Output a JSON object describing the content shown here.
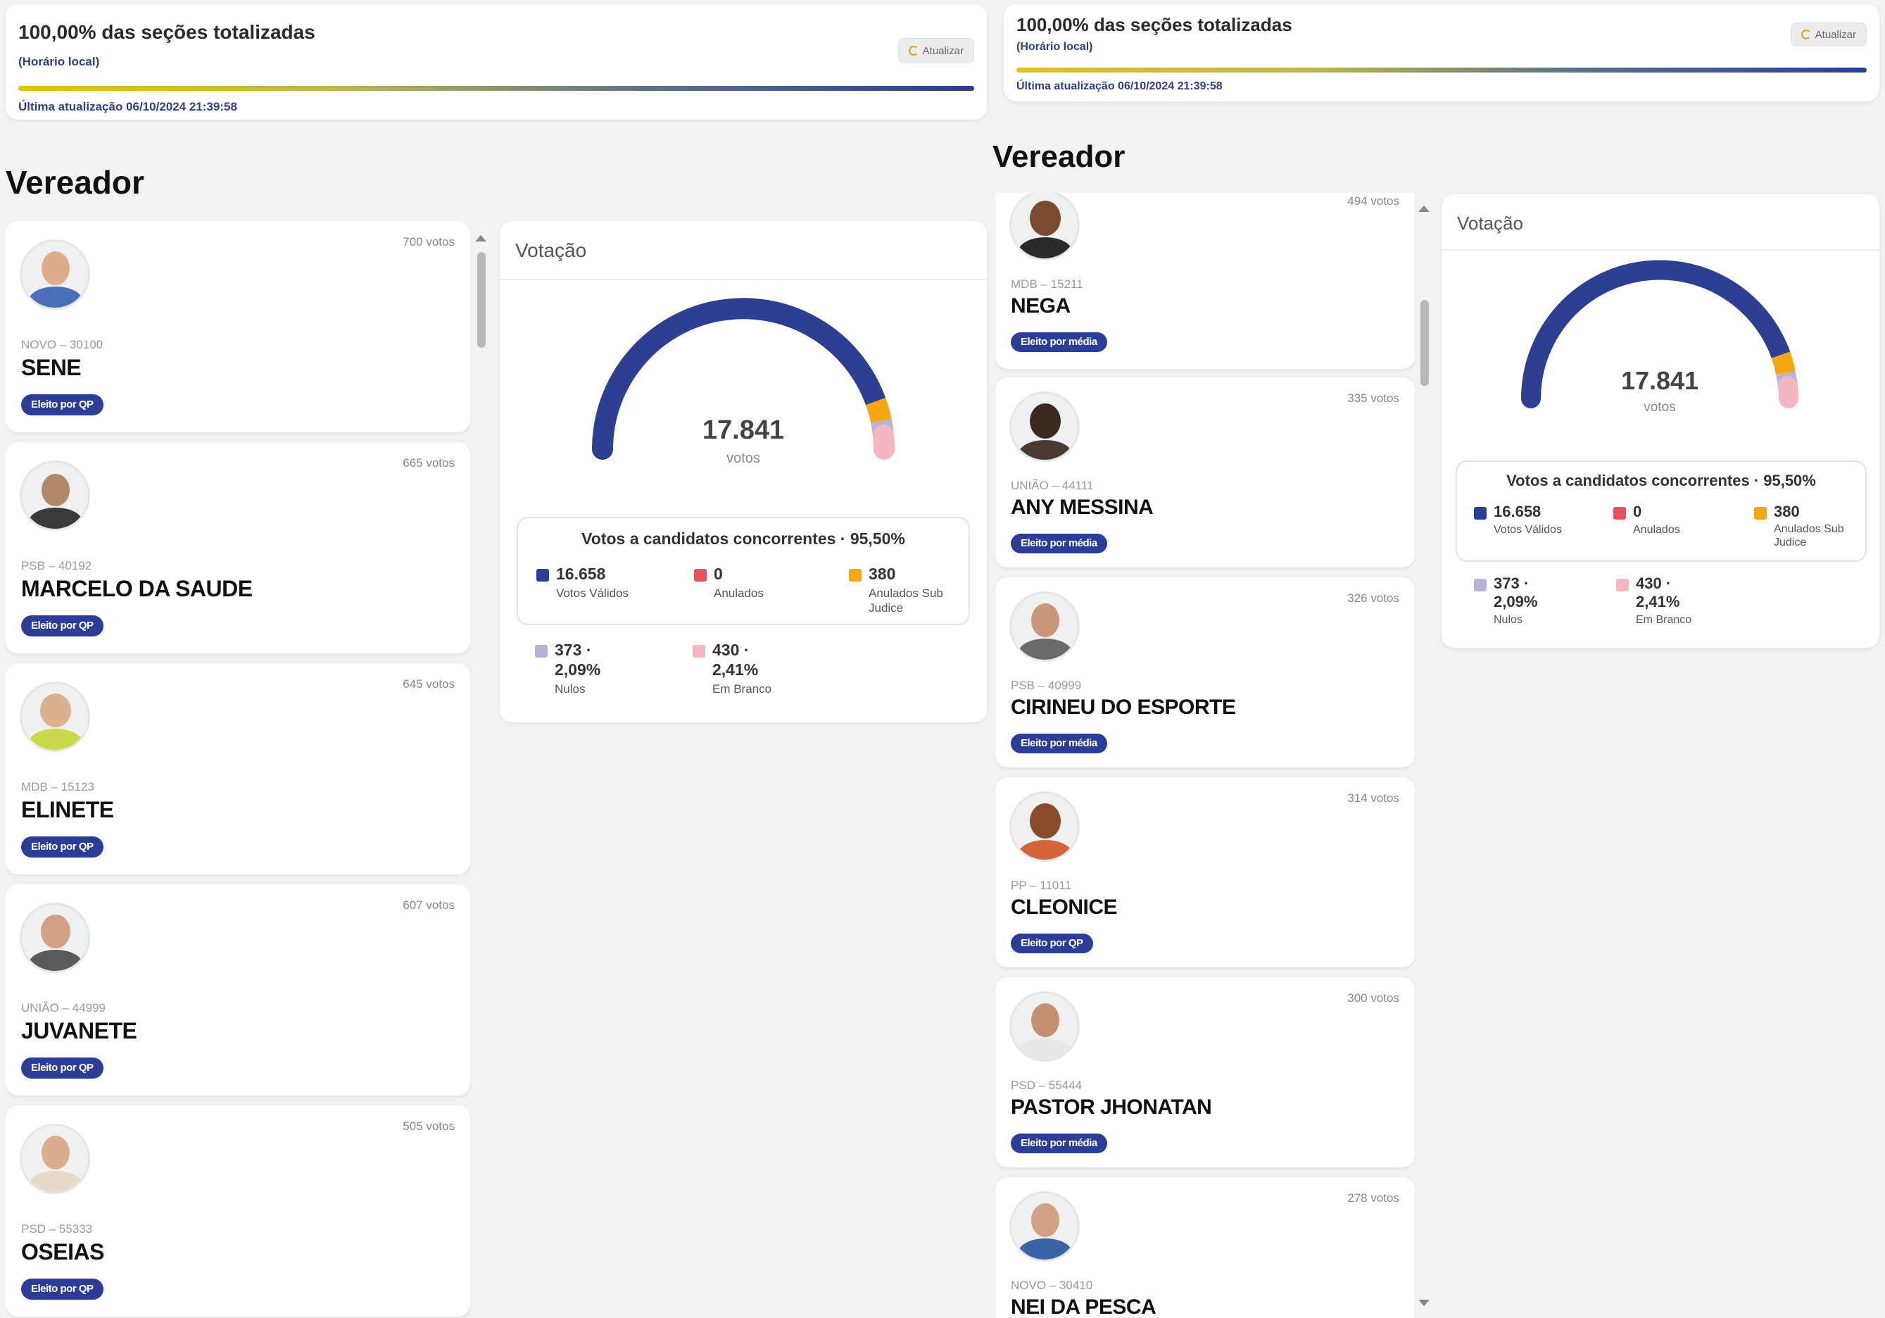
{
  "panels": [
    {
      "status": {
        "title": "100,00% das seções totalizadas",
        "timezone": "(Horário local)",
        "last_update": "Última atualização 06/10/2024 21:39:58",
        "refresh_label": "Atualizar"
      },
      "section_title": "Vereador",
      "candidates": [
        {
          "votes": "700 votos",
          "party": "NOVO – 30100",
          "name": "SENE",
          "badge": "Eleito por QP"
        },
        {
          "votes": "665 votos",
          "party": "PSB – 40192",
          "name": "MARCELO DA SAUDE",
          "badge": "Eleito por QP"
        },
        {
          "votes": "645 votos",
          "party": "MDB – 15123",
          "name": "ELINETE",
          "badge": "Eleito por QP"
        },
        {
          "votes": "607 votos",
          "party": "UNIÃO – 44999",
          "name": "JUVANETE",
          "badge": "Eleito por QP"
        },
        {
          "votes": "505 votos",
          "party": "PSD – 55333",
          "name": "OSEIAS",
          "badge": "Eleito por QP"
        }
      ],
      "voting": {
        "title": "Votação",
        "total": "17.841",
        "total_label": "votos",
        "concorrentes_title": "Votos a candidatos concorrentes · 95,50%",
        "validos": {
          "value": "16.658",
          "label": "Votos Válidos",
          "color": "#2b3d96"
        },
        "anulados": {
          "value": "0",
          "label": "Anulados",
          "color": "#e8505b"
        },
        "sub_judice": {
          "value": "380",
          "label_1": "Anulados Sub",
          "label_2": "Judice",
          "color": "#f3a712"
        },
        "nulos": {
          "value": "373 ·",
          "pct": "2,09%",
          "label": "Nulos",
          "color": "#b7b3d9"
        },
        "branco": {
          "value": "430 ·",
          "pct": "2,41%",
          "label": "Em Branco",
          "color": "#f4b6c0"
        }
      }
    },
    {
      "status": {
        "title": "100,00% das seções totalizadas",
        "timezone": "(Horário local)",
        "last_update": "Última atualização 06/10/2024 21:39:58",
        "refresh_label": "Atualizar"
      },
      "section_title": "Vereador",
      "candidates": [
        {
          "votes": "494 votos",
          "party": "MDB – 15211",
          "name": "NEGA",
          "badge": "Eleito por média"
        },
        {
          "votes": "335 votos",
          "party": "UNIÃO – 44111",
          "name": "ANY MESSINA",
          "badge": "Eleito por média"
        },
        {
          "votes": "326 votos",
          "party": "PSB – 40999",
          "name": "CIRINEU DO ESPORTE",
          "badge": "Eleito por média"
        },
        {
          "votes": "314 votos",
          "party": "PP – 11011",
          "name": "CLEONICE",
          "badge": "Eleito por QP"
        },
        {
          "votes": "300 votos",
          "party": "PSD – 55444",
          "name": "PASTOR JHONATAN",
          "badge": "Eleito por média"
        },
        {
          "votes": "278 votos",
          "party": "NOVO – 30410",
          "name": "NEI DA PESCA",
          "badge": ""
        }
      ],
      "voting": {
        "title": "Votação",
        "total": "17.841",
        "total_label": "votos",
        "concorrentes_title": "Votos a candidatos concorrentes · 95,50%",
        "validos": {
          "value": "16.658",
          "label": "Votos Válidos",
          "color": "#2b3d96"
        },
        "anulados": {
          "value": "0",
          "label": "Anulados",
          "color": "#e8505b"
        },
        "sub_judice": {
          "value": "380",
          "label_1": "Anulados Sub",
          "label_2": "Judice",
          "color": "#f3a712"
        },
        "nulos": {
          "value": "373 ·",
          "pct": "2,09%",
          "label": "Nulos",
          "color": "#b7b3d9"
        },
        "branco": {
          "value": "430 ·",
          "pct": "2,41%",
          "label": "Em Branco",
          "color": "#f4b6c0"
        }
      }
    }
  ]
}
